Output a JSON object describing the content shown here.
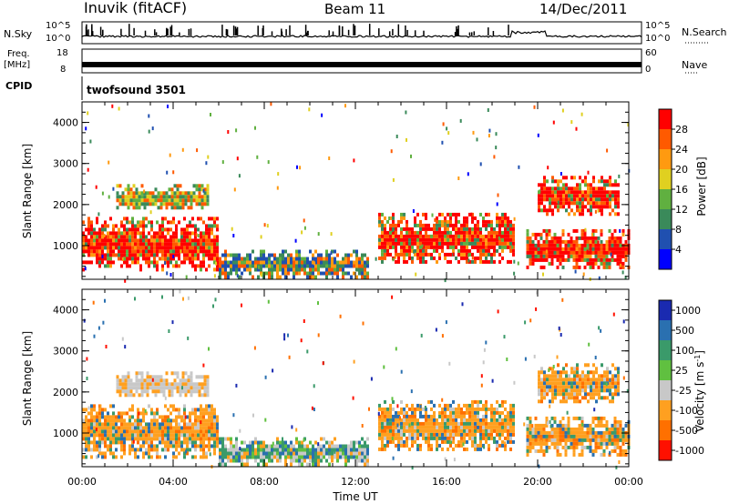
{
  "header": {
    "station": "Inuvik (fitACF)",
    "beam": "Beam 11",
    "date": "14/Dec/2011"
  },
  "top_panels": {
    "nsky": {
      "label": "N.Sky",
      "right_label": "N.Search",
      "ticks_left": [
        "10^5",
        "10^0"
      ],
      "ticks_right": [
        "10^5",
        "10^0"
      ]
    },
    "freq": {
      "label_line1": "Freq.",
      "label_line2": "[MHz]",
      "right_label": "Nave",
      "ticks_left": [
        "18",
        "8"
      ],
      "ticks_right": [
        "60",
        "0"
      ]
    },
    "cpid": {
      "label": "CPID",
      "value": "twofsound 3501"
    }
  },
  "colors": {
    "power_scale": [
      "#0000ff",
      "#2050b0",
      "#3a8a5a",
      "#60b040",
      "#e0d020",
      "#ff9a10",
      "#ff5a00",
      "#ff0000"
    ],
    "velocity_scale": [
      "#1a2ab0",
      "#2a70b0",
      "#3a9a6a",
      "#60c040",
      "#c8c8c8",
      "#ffa020",
      "#ff7000",
      "#ff1000"
    ],
    "ground_scatter": "#b4b4b4"
  },
  "chart_data": [
    {
      "type": "heatmap",
      "panel": "power",
      "ylabel": "Slant Range [km]",
      "ylim": [
        180,
        4500
      ],
      "yticks": [
        "1000",
        "2000",
        "3000",
        "4000"
      ],
      "xlim": [
        "00:00",
        "24:00"
      ],
      "colorbar": {
        "label": "Power [dB]",
        "tick_labels": [
          "4",
          "8",
          "12",
          "16",
          "20",
          "24",
          "28"
        ],
        "range": [
          0,
          32
        ]
      },
      "echo_regions": [
        {
          "t_start": 0.0,
          "t_end": 6.0,
          "range_lo": 400,
          "range_hi": 1700,
          "level": "high"
        },
        {
          "t_start": 1.5,
          "t_end": 5.5,
          "range_lo": 1900,
          "range_hi": 2500,
          "level": "medium"
        },
        {
          "t_start": 6.0,
          "t_end": 12.5,
          "range_lo": 250,
          "range_hi": 900,
          "level": "low"
        },
        {
          "t_start": 13.0,
          "t_end": 19.0,
          "range_lo": 600,
          "range_hi": 1800,
          "level": "high"
        },
        {
          "t_start": 19.5,
          "t_end": 24.0,
          "range_lo": 500,
          "range_hi": 1400,
          "level": "high"
        },
        {
          "t_start": 20.0,
          "t_end": 23.5,
          "range_lo": 1800,
          "range_hi": 2700,
          "level": "high"
        }
      ]
    },
    {
      "type": "heatmap",
      "panel": "velocity",
      "ylabel": "Slant Range [km]",
      "xlabel": "Time UT",
      "ylim": [
        180,
        4500
      ],
      "yticks": [
        "1000",
        "2000",
        "3000",
        "4000"
      ],
      "xlim": [
        "00:00",
        "24:00"
      ],
      "xtick_labels": [
        "00:00",
        "04:00",
        "08:00",
        "12:00",
        "16:00",
        "20:00",
        "00:00"
      ],
      "colorbar": {
        "label": "Velocity [m s",
        "label_sup": "-1",
        "label_end": "]",
        "tick_labels": [
          "1000",
          "500",
          "100",
          "25",
          "-25",
          "-100",
          "-500",
          "-1000"
        ]
      },
      "echo_regions": [
        {
          "t_start": 0.0,
          "t_end": 6.0,
          "range_lo": 400,
          "range_hi": 1700,
          "level": "negative"
        },
        {
          "t_start": 1.5,
          "t_end": 5.5,
          "range_lo": 1900,
          "range_hi": 2500,
          "level": "ground"
        },
        {
          "t_start": 6.0,
          "t_end": 12.5,
          "range_lo": 250,
          "range_hi": 900,
          "level": "mixed"
        },
        {
          "t_start": 13.0,
          "t_end": 19.0,
          "range_lo": 600,
          "range_hi": 1800,
          "level": "negative"
        },
        {
          "t_start": 19.5,
          "t_end": 24.0,
          "range_lo": 500,
          "range_hi": 1400,
          "level": "negative"
        },
        {
          "t_start": 20.0,
          "t_end": 23.5,
          "range_lo": 1800,
          "range_hi": 2700,
          "level": "negative"
        }
      ]
    }
  ]
}
